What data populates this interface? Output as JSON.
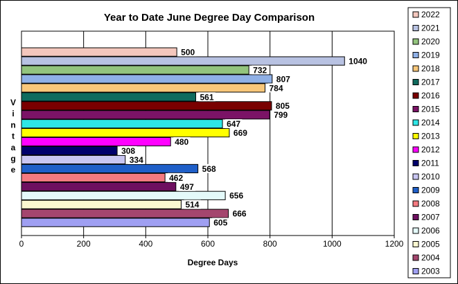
{
  "chart_data": {
    "type": "bar",
    "orientation": "horizontal",
    "title": "Year to Date June Degree Day Comparison",
    "xlabel": "Degree Days",
    "ylabel": "Vintage",
    "xlim": [
      0,
      1200
    ],
    "xticks": [
      0,
      200,
      400,
      600,
      800,
      1000,
      1200
    ],
    "grid": "vertical",
    "legend_position": "right",
    "categories": [
      "2022",
      "2021",
      "2020",
      "2019",
      "2018",
      "2017",
      "2016",
      "2015",
      "2014",
      "2013",
      "2012",
      "2011",
      "2010",
      "2009",
      "2008",
      "2007",
      "2006",
      "2005",
      "2004",
      "2003"
    ],
    "values": [
      500,
      1040,
      732,
      807,
      784,
      561,
      805,
      799,
      647,
      669,
      480,
      308,
      334,
      568,
      462,
      497,
      656,
      514,
      666,
      605
    ],
    "colors": [
      "#f4c7bd",
      "#b8c2e2",
      "#93c47d",
      "#8fb0e6",
      "#f9c77a",
      "#0f6b5e",
      "#7a0000",
      "#7b1366",
      "#2ee6e6",
      "#ffff00",
      "#ff00ff",
      "#00006b",
      "#c9c6f2",
      "#1f5fc8",
      "#f47a80",
      "#6e1060",
      "#e4fafa",
      "#fbf8d0",
      "#a4466e",
      "#9f9ff2"
    ],
    "data_label_color": [
      "#000000",
      "#000000",
      "#000000",
      "#000000",
      "#000000",
      "#000000",
      "#000000",
      "#000000",
      "#000000",
      "#000000",
      "#000000",
      "#000000",
      "#000000",
      "#000000",
      "#000000",
      "#000000",
      "#000000",
      "#000000",
      "#000000",
      "#000000"
    ]
  }
}
